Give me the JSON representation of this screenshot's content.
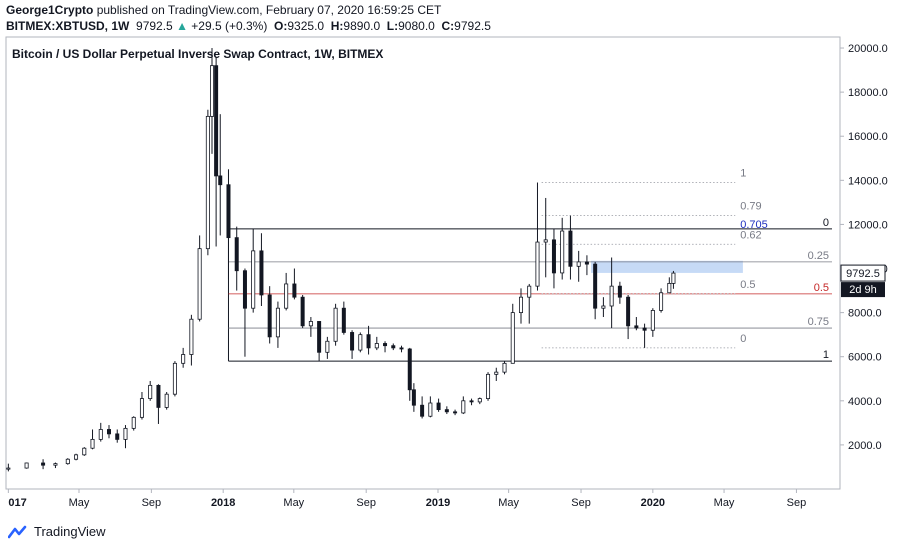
{
  "header": {
    "author": "George1Crypto",
    "publish_text": "published on TradingView.com, February 07, 2020 16:59:25 CET",
    "symbol": "BITMEX:XBTUSD, 1W",
    "last": "9792.5",
    "change": "+29.5 (+0.3%)",
    "o_label": "O:",
    "o_value": "9325.0",
    "h_label": "H:",
    "h_value": "9890.0",
    "l_label": "L:",
    "l_value": "9080.0",
    "c_label": "C:",
    "c_value": "9792.5"
  },
  "footer": {
    "brand": "TradingView"
  },
  "colors": {
    "candle_up": "#ffffff",
    "candle_down": "#131722",
    "mid_line": "#c62828",
    "level_0705": "#1e2fbf",
    "zone_fill": "#bcd4f5"
  },
  "chart_data": {
    "type": "candlestick",
    "title": "Bitcoin / US Dollar Perpetual Inverse Swap Contract, 1W, BITMEX",
    "ylim": [
      0,
      20500
    ],
    "y_ticks": [
      "2000.0",
      "4000.0",
      "6000.0",
      "8000.0",
      "10000.0",
      "12000.0",
      "14000.0",
      "16000.0",
      "18000.0",
      "20000.0"
    ],
    "y_tick_values": [
      2000,
      4000,
      6000,
      8000,
      10000,
      12000,
      14000,
      16000,
      18000,
      20000
    ],
    "x_ticks": [
      {
        "label": "017",
        "date": "2017-01-01"
      },
      {
        "label": "May",
        "date": "2017-05-01"
      },
      {
        "label": "Sep",
        "date": "2017-09-01"
      },
      {
        "label": "2018",
        "date": "2018-01-01"
      },
      {
        "label": "May",
        "date": "2018-05-01"
      },
      {
        "label": "Sep",
        "date": "2018-09-01"
      },
      {
        "label": "2019",
        "date": "2019-01-01"
      },
      {
        "label": "May",
        "date": "2019-05-01"
      },
      {
        "label": "Sep",
        "date": "2019-09-01"
      },
      {
        "label": "2020",
        "date": "2020-01-01"
      },
      {
        "label": "May",
        "date": "2020-05-01"
      },
      {
        "label": "Sep",
        "date": "2020-09-01"
      }
    ],
    "x_range": [
      "2016-12-28",
      "2020-11-14"
    ],
    "price_badge": "9792.5",
    "price_value": 9792.5,
    "countdown_badge": "2d 9h",
    "ohlc": [
      {
        "date": "2017-01-01",
        "o": 900,
        "h": 1150,
        "l": 800,
        "c": 950
      },
      {
        "date": "2017-02-01",
        "o": 950,
        "h": 1200,
        "l": 920,
        "c": 1180
      },
      {
        "date": "2017-03-01",
        "o": 1180,
        "h": 1350,
        "l": 900,
        "c": 1080
      },
      {
        "date": "2017-03-22",
        "o": 1080,
        "h": 1200,
        "l": 950,
        "c": 1150
      },
      {
        "date": "2017-04-12",
        "o": 1150,
        "h": 1400,
        "l": 1100,
        "c": 1350
      },
      {
        "date": "2017-04-26",
        "o": 1350,
        "h": 1600,
        "l": 1300,
        "c": 1550
      },
      {
        "date": "2017-05-10",
        "o": 1550,
        "h": 1900,
        "l": 1500,
        "c": 1850
      },
      {
        "date": "2017-05-24",
        "o": 1850,
        "h": 2700,
        "l": 1800,
        "c": 2250
      },
      {
        "date": "2017-06-07",
        "o": 2250,
        "h": 3000,
        "l": 2150,
        "c": 2700
      },
      {
        "date": "2017-06-21",
        "o": 2700,
        "h": 2900,
        "l": 2300,
        "c": 2500
      },
      {
        "date": "2017-07-05",
        "o": 2500,
        "h": 2700,
        "l": 2100,
        "c": 2250
      },
      {
        "date": "2017-07-19",
        "o": 2250,
        "h": 2900,
        "l": 1850,
        "c": 2750
      },
      {
        "date": "2017-08-02",
        "o": 2750,
        "h": 3300,
        "l": 2650,
        "c": 3250
      },
      {
        "date": "2017-08-16",
        "o": 3250,
        "h": 4400,
        "l": 3150,
        "c": 4100
      },
      {
        "date": "2017-08-30",
        "o": 4100,
        "h": 4900,
        "l": 4000,
        "c": 4700
      },
      {
        "date": "2017-09-13",
        "o": 4700,
        "h": 4750,
        "l": 2950,
        "c": 3700
      },
      {
        "date": "2017-09-27",
        "o": 3700,
        "h": 4400,
        "l": 3600,
        "c": 4300
      },
      {
        "date": "2017-10-11",
        "o": 4300,
        "h": 5800,
        "l": 4200,
        "c": 5700
      },
      {
        "date": "2017-10-25",
        "o": 5700,
        "h": 6400,
        "l": 5500,
        "c": 6100
      },
      {
        "date": "2017-11-08",
        "o": 6100,
        "h": 7900,
        "l": 5600,
        "c": 7700
      },
      {
        "date": "2017-11-22",
        "o": 7700,
        "h": 11500,
        "l": 7600,
        "c": 10900
      },
      {
        "date": "2017-12-06",
        "o": 10900,
        "h": 17200,
        "l": 10600,
        "c": 16900
      },
      {
        "date": "2017-12-13",
        "o": 16900,
        "h": 20000,
        "l": 15200,
        "c": 19200
      },
      {
        "date": "2017-12-20",
        "o": 19200,
        "h": 19600,
        "l": 11000,
        "c": 14200
      },
      {
        "date": "2017-12-27",
        "o": 14200,
        "h": 17000,
        "l": 11500,
        "c": 13800
      },
      {
        "date": "2018-01-10",
        "o": 13800,
        "h": 14500,
        "l": 9500,
        "c": 11400
      },
      {
        "date": "2018-01-24",
        "o": 11400,
        "h": 11900,
        "l": 9000,
        "c": 9900
      },
      {
        "date": "2018-02-07",
        "o": 9900,
        "h": 10000,
        "l": 6000,
        "c": 8200
      },
      {
        "date": "2018-02-21",
        "o": 8200,
        "h": 11800,
        "l": 8000,
        "c": 10800
      },
      {
        "date": "2018-03-07",
        "o": 10800,
        "h": 11600,
        "l": 8300,
        "c": 8800
      },
      {
        "date": "2018-03-21",
        "o": 8800,
        "h": 9200,
        "l": 6600,
        "c": 6900
      },
      {
        "date": "2018-04-04",
        "o": 6900,
        "h": 8500,
        "l": 6400,
        "c": 8200
      },
      {
        "date": "2018-04-18",
        "o": 8200,
        "h": 9800,
        "l": 8100,
        "c": 9300
      },
      {
        "date": "2018-05-02",
        "o": 9300,
        "h": 10000,
        "l": 8600,
        "c": 8700
      },
      {
        "date": "2018-05-16",
        "o": 8700,
        "h": 8800,
        "l": 7300,
        "c": 7400
      },
      {
        "date": "2018-05-30",
        "o": 7400,
        "h": 7800,
        "l": 6900,
        "c": 7600
      },
      {
        "date": "2018-06-13",
        "o": 7600,
        "h": 7600,
        "l": 5800,
        "c": 6200
      },
      {
        "date": "2018-06-27",
        "o": 6200,
        "h": 6900,
        "l": 5900,
        "c": 6700
      },
      {
        "date": "2018-07-11",
        "o": 6700,
        "h": 8400,
        "l": 6500,
        "c": 8200
      },
      {
        "date": "2018-07-25",
        "o": 8200,
        "h": 8500,
        "l": 7000,
        "c": 7100
      },
      {
        "date": "2018-08-08",
        "o": 7100,
        "h": 7200,
        "l": 5900,
        "c": 6300
      },
      {
        "date": "2018-08-22",
        "o": 6300,
        "h": 7100,
        "l": 6200,
        "c": 7000
      },
      {
        "date": "2018-09-05",
        "o": 7000,
        "h": 7400,
        "l": 6100,
        "c": 6400
      },
      {
        "date": "2018-09-19",
        "o": 6400,
        "h": 6900,
        "l": 6300,
        "c": 6600
      },
      {
        "date": "2018-10-03",
        "o": 6600,
        "h": 6700,
        "l": 6200,
        "c": 6500
      },
      {
        "date": "2018-10-17",
        "o": 6500,
        "h": 6600,
        "l": 6300,
        "c": 6400
      },
      {
        "date": "2018-10-31",
        "o": 6400,
        "h": 6500,
        "l": 6200,
        "c": 6350
      },
      {
        "date": "2018-11-14",
        "o": 6350,
        "h": 6400,
        "l": 4000,
        "c": 4500
      },
      {
        "date": "2018-11-21",
        "o": 4500,
        "h": 4800,
        "l": 3500,
        "c": 3800
      },
      {
        "date": "2018-12-05",
        "o": 3800,
        "h": 4200,
        "l": 3200,
        "c": 3300
      },
      {
        "date": "2018-12-19",
        "o": 3300,
        "h": 4200,
        "l": 3250,
        "c": 3900
      },
      {
        "date": "2019-01-02",
        "o": 3900,
        "h": 4100,
        "l": 3500,
        "c": 3600
      },
      {
        "date": "2019-01-16",
        "o": 3600,
        "h": 3750,
        "l": 3400,
        "c": 3500
      },
      {
        "date": "2019-01-30",
        "o": 3500,
        "h": 3600,
        "l": 3350,
        "c": 3450
      },
      {
        "date": "2019-02-13",
        "o": 3450,
        "h": 4200,
        "l": 3400,
        "c": 4000
      },
      {
        "date": "2019-02-27",
        "o": 4000,
        "h": 4100,
        "l": 3800,
        "c": 3950
      },
      {
        "date": "2019-03-13",
        "o": 3950,
        "h": 4150,
        "l": 3850,
        "c": 4100
      },
      {
        "date": "2019-03-27",
        "o": 4100,
        "h": 5300,
        "l": 4000,
        "c": 5200
      },
      {
        "date": "2019-04-10",
        "o": 5200,
        "h": 5500,
        "l": 4900,
        "c": 5300
      },
      {
        "date": "2019-04-24",
        "o": 5300,
        "h": 5800,
        "l": 5200,
        "c": 5700
      },
      {
        "date": "2019-05-08",
        "o": 5700,
        "h": 8400,
        "l": 5700,
        "c": 8000
      },
      {
        "date": "2019-05-22",
        "o": 8000,
        "h": 9100,
        "l": 7500,
        "c": 8700
      },
      {
        "date": "2019-06-05",
        "o": 8700,
        "h": 9300,
        "l": 7500,
        "c": 9200
      },
      {
        "date": "2019-06-19",
        "o": 9200,
        "h": 13900,
        "l": 9000,
        "c": 11200
      },
      {
        "date": "2019-07-03",
        "o": 11200,
        "h": 13200,
        "l": 9600,
        "c": 11300
      },
      {
        "date": "2019-07-17",
        "o": 11300,
        "h": 11800,
        "l": 9100,
        "c": 9800
      },
      {
        "date": "2019-07-31",
        "o": 9800,
        "h": 12300,
        "l": 9500,
        "c": 11700
      },
      {
        "date": "2019-08-14",
        "o": 11700,
        "h": 12400,
        "l": 9500,
        "c": 10100
      },
      {
        "date": "2019-08-28",
        "o": 10100,
        "h": 10800,
        "l": 9400,
        "c": 10300
      },
      {
        "date": "2019-09-11",
        "o": 10300,
        "h": 10600,
        "l": 9700,
        "c": 10200
      },
      {
        "date": "2019-09-25",
        "o": 10200,
        "h": 10300,
        "l": 7700,
        "c": 8200
      },
      {
        "date": "2019-10-09",
        "o": 8200,
        "h": 8700,
        "l": 7800,
        "c": 8300
      },
      {
        "date": "2019-10-23",
        "o": 8300,
        "h": 10500,
        "l": 7300,
        "c": 9200
      },
      {
        "date": "2019-11-06",
        "o": 9200,
        "h": 9400,
        "l": 8400,
        "c": 8700
      },
      {
        "date": "2019-11-20",
        "o": 8700,
        "h": 8800,
        "l": 6800,
        "c": 7400
      },
      {
        "date": "2019-12-04",
        "o": 7400,
        "h": 7800,
        "l": 7200,
        "c": 7300
      },
      {
        "date": "2019-12-18",
        "o": 7300,
        "h": 7500,
        "l": 6400,
        "c": 7200
      },
      {
        "date": "2020-01-01",
        "o": 7200,
        "h": 8200,
        "l": 6900,
        "c": 8100
      },
      {
        "date": "2020-01-15",
        "o": 8100,
        "h": 9100,
        "l": 8000,
        "c": 8900
      },
      {
        "date": "2020-01-29",
        "o": 8900,
        "h": 9600,
        "l": 8900,
        "c": 9325
      },
      {
        "date": "2020-02-05",
        "o": 9325,
        "h": 9890,
        "l": 9080,
        "c": 9792.5
      }
    ],
    "fib_levels": [
      {
        "label": "1",
        "value": 13900
      },
      {
        "label": "0.79",
        "value": 12400
      },
      {
        "label": "0.705",
        "value": 11800
      },
      {
        "label": "0.62",
        "value": 11100
      },
      {
        "label": "0.5",
        "value": 8850
      },
      {
        "label": "0",
        "value": 6400
      }
    ],
    "box_levels": [
      {
        "label": "0",
        "value": 11800
      },
      {
        "label": "0.25",
        "value": 10300
      },
      {
        "label": "0.5",
        "value": 8850
      },
      {
        "label": "0.75",
        "value": 7300
      },
      {
        "label": "1",
        "value": 5800
      }
    ],
    "zone": {
      "low": 9800,
      "high": 10350,
      "start": "2019-09-18",
      "end": "2020-06-02"
    },
    "box_start": "2018-01-10",
    "fib_start": "2019-06-26",
    "fib_end": "2020-05-20"
  }
}
